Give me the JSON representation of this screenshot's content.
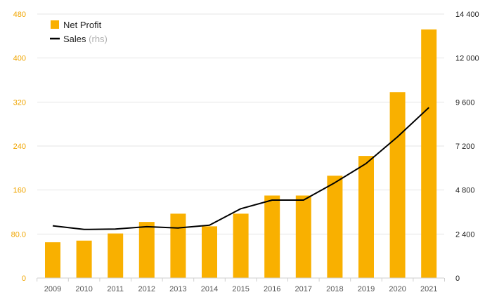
{
  "chart_data": {
    "type": "bar",
    "categories": [
      "2009",
      "2010",
      "2011",
      "2012",
      "2013",
      "2014",
      "2015",
      "2016",
      "2017",
      "2018",
      "2019",
      "2020",
      "2021"
    ],
    "series": [
      {
        "name": "Net Profit",
        "type": "bar",
        "axis": "left",
        "color": "#f9b000",
        "values": [
          65,
          68,
          81,
          102,
          117,
          94,
          117,
          150,
          150,
          186,
          222,
          338,
          452
        ]
      },
      {
        "name": "Sales",
        "name_suffix": "(rhs)",
        "type": "line",
        "axis": "right",
        "color": "#000000",
        "values": [
          2850,
          2650,
          2670,
          2800,
          2730,
          2880,
          3780,
          4250,
          4250,
          5200,
          6250,
          7700,
          9300
        ]
      }
    ],
    "y_left": {
      "min": 0,
      "max": 480,
      "ticks": [
        0,
        80,
        160,
        240,
        320,
        400,
        480
      ],
      "tick_labels": [
        "0",
        "80.0",
        "160",
        "240",
        "320",
        "400",
        "480"
      ]
    },
    "y_right": {
      "min": 0,
      "max": 14400,
      "ticks": [
        0,
        2400,
        4800,
        7200,
        9600,
        12000,
        14400
      ],
      "tick_labels": [
        "0",
        "2 400",
        "4 800",
        "7 200",
        "9 600",
        "12 000",
        "14 400"
      ]
    },
    "grid": true,
    "legend_position": "top-left",
    "title": "",
    "xlabel": "",
    "ylabel": ""
  }
}
